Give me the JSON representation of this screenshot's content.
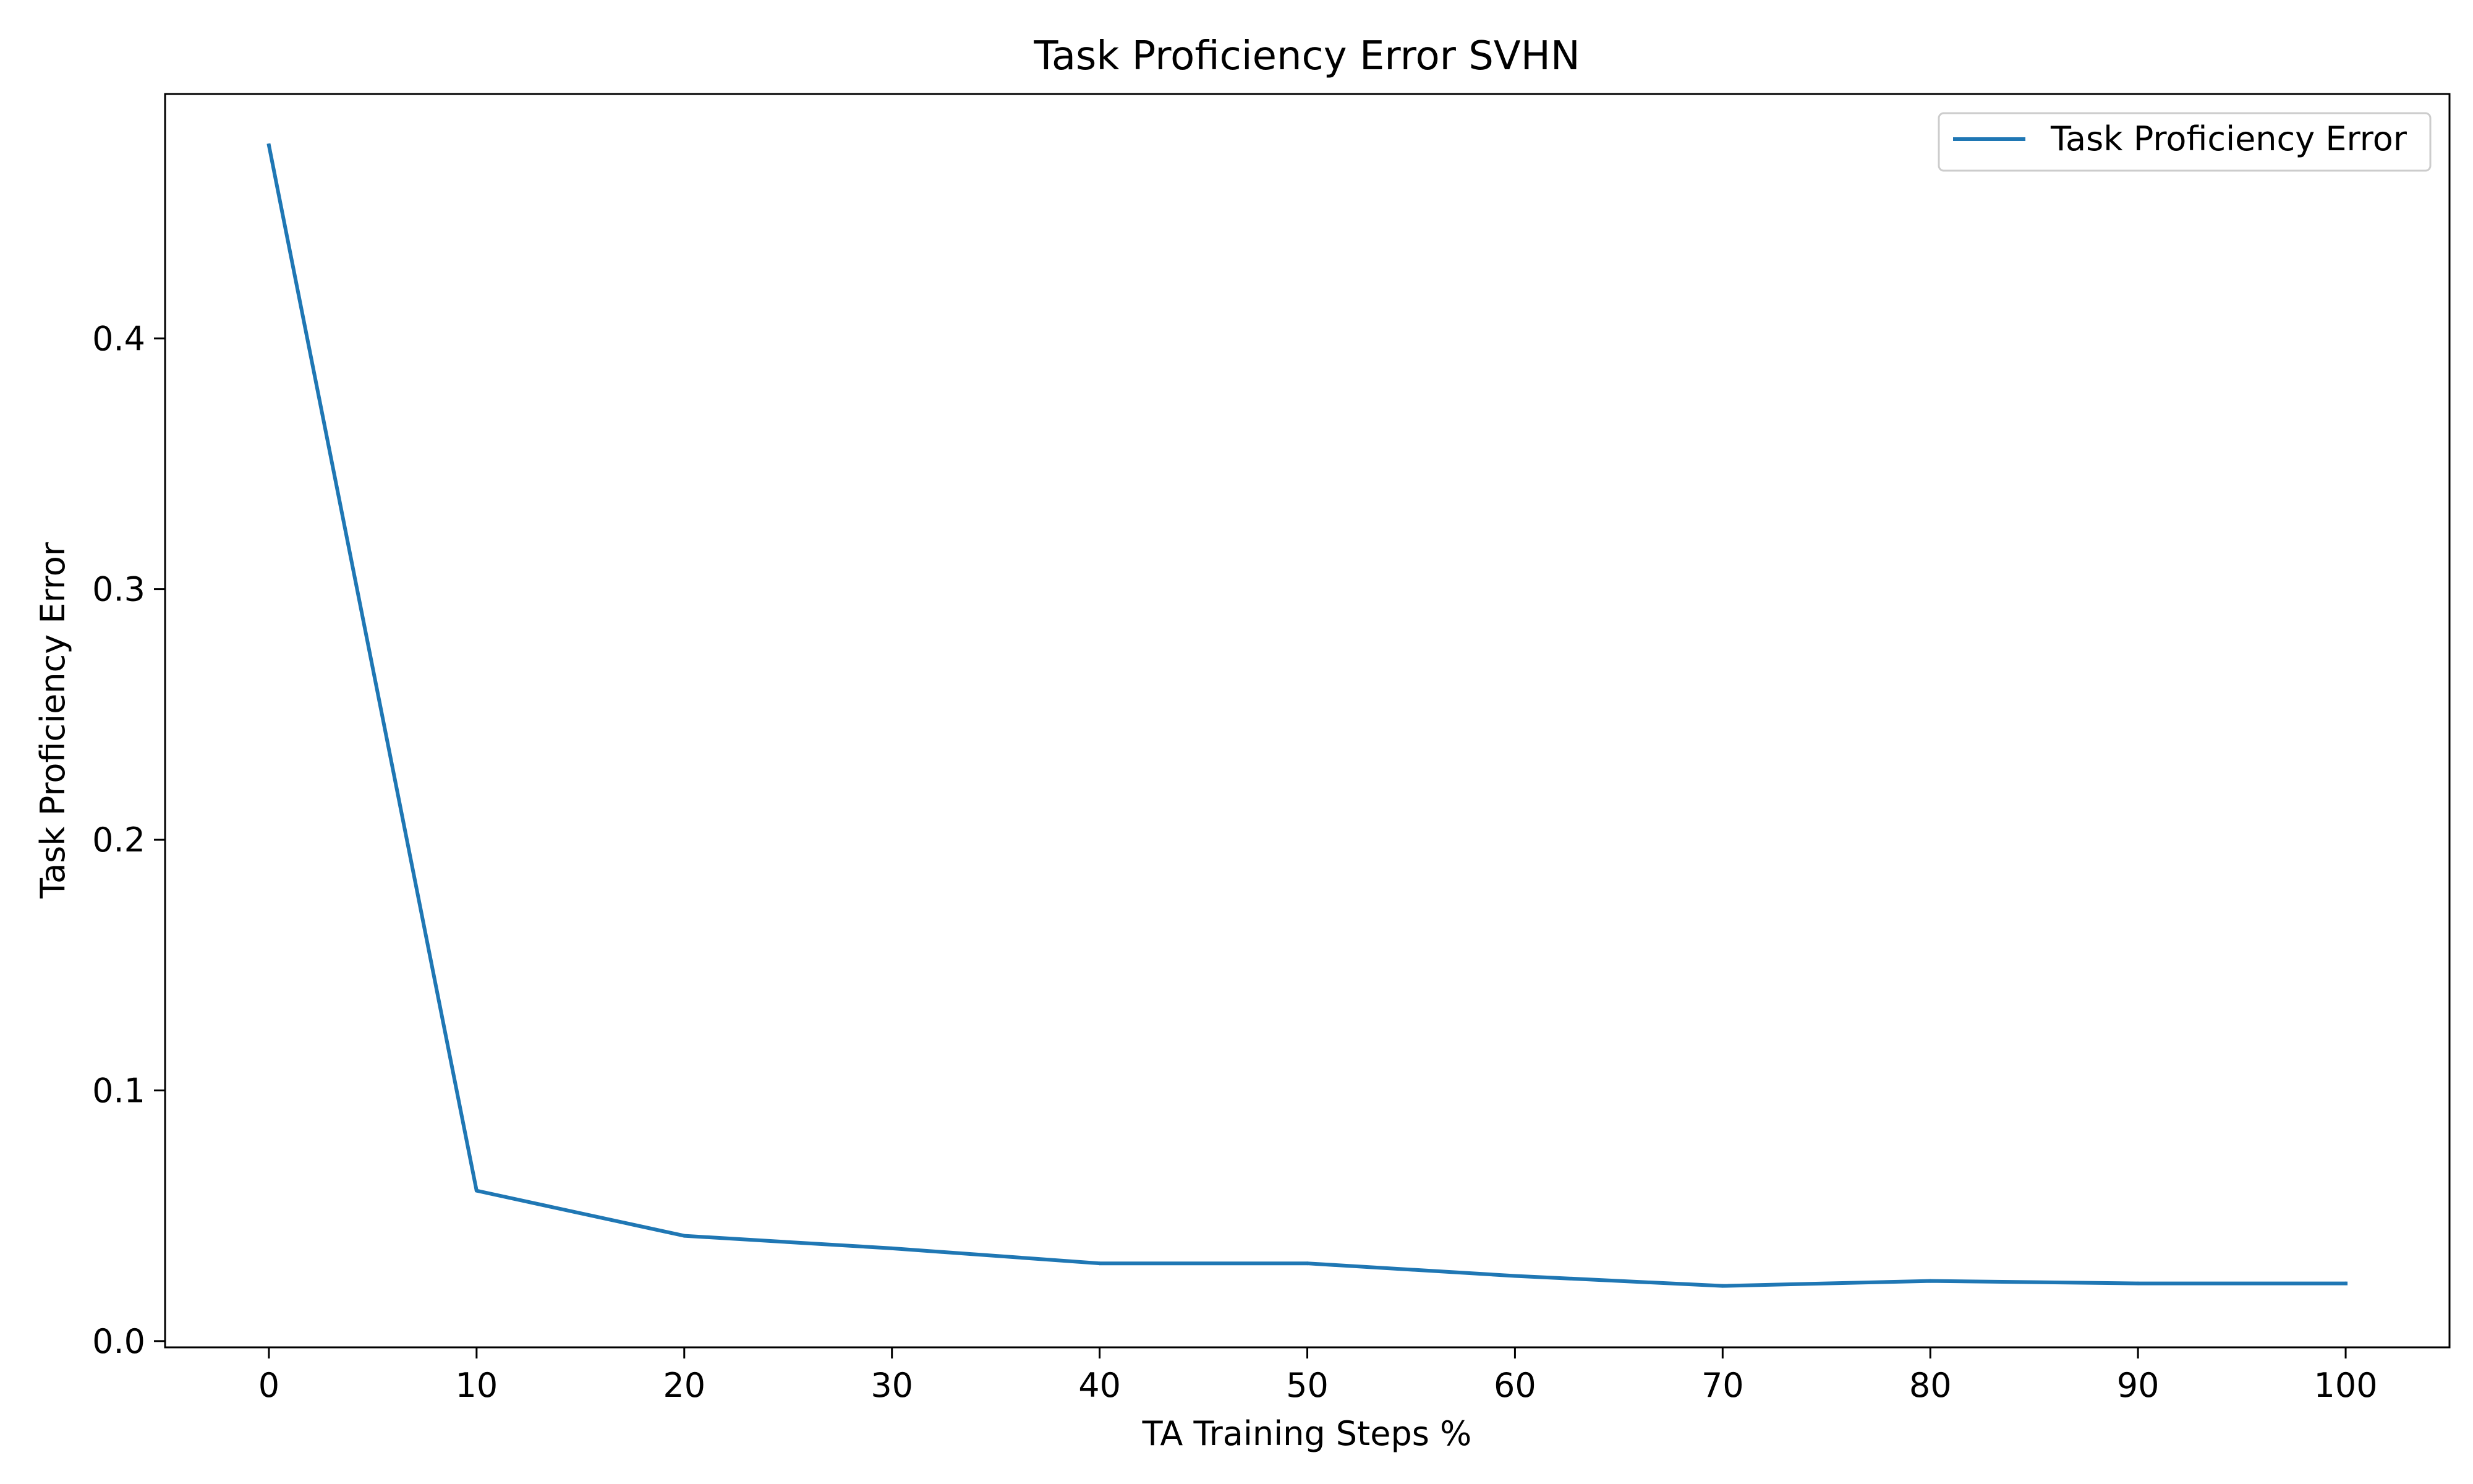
{
  "chart_data": {
    "type": "line",
    "title": "Task Proficiency Error SVHN",
    "xlabel": "TA Training Steps %",
    "ylabel": "Task Proficiency Error",
    "x": [
      0,
      10,
      20,
      30,
      40,
      50,
      60,
      70,
      80,
      90,
      100
    ],
    "xticks": [
      "0",
      "10",
      "20",
      "30",
      "40",
      "50",
      "60",
      "70",
      "80",
      "90",
      "100"
    ],
    "yticks": [
      "0.0",
      "0.1",
      "0.2",
      "0.3",
      "0.4"
    ],
    "xlim": [
      -5,
      105
    ],
    "ylim": [
      -0.0025,
      0.4975
    ],
    "grid": false,
    "legend_position": "top-right",
    "series": [
      {
        "name": "Task Proficiency Error",
        "color": "#1f77b4",
        "values": [
          0.477,
          0.06,
          0.042,
          0.037,
          0.031,
          0.031,
          0.026,
          0.022,
          0.024,
          0.023,
          0.023
        ]
      }
    ]
  }
}
